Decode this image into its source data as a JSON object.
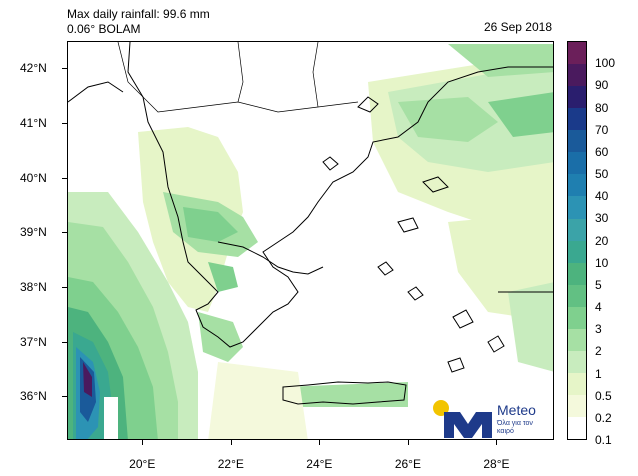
{
  "title": "Max daily rainfall: 99.6 mm",
  "model": "0.06° BOLAM",
  "date": "26 Sep 2018",
  "map": {
    "lat_labels": [
      "42°N",
      "41°N",
      "40°N",
      "39°N",
      "38°N",
      "37°N",
      "36°N"
    ],
    "lon_labels": [
      "20°E",
      "22°E",
      "24°E",
      "26°E",
      "28°E"
    ],
    "lat_values": [
      42,
      41,
      40,
      39,
      38,
      37,
      36
    ],
    "lon_values": [
      20,
      22,
      24,
      26,
      28
    ],
    "lat_range": [
      35.2,
      42.5
    ],
    "lon_range": [
      18.3,
      29.3
    ]
  },
  "colorbar": {
    "unit": "mm",
    "labels": [
      "100",
      "90",
      "80",
      "70",
      "60",
      "50",
      "40",
      "30",
      "20",
      "10",
      "5",
      "4",
      "3",
      "2",
      "1",
      "0.5",
      "0.2",
      "0.1"
    ],
    "colors": [
      "#6b1f5a",
      "#4a1a5e",
      "#2a1e6e",
      "#1a3a8a",
      "#1a5a9a",
      "#1a6ea8",
      "#1f7fb0",
      "#2c93b4",
      "#3ba3a8",
      "#3aa890",
      "#4db37e",
      "#62c083",
      "#7fd08e",
      "#a6e0a4",
      "#c8ecbe",
      "#e6f5c8",
      "#f4f9dc",
      "#ffffff"
    ]
  },
  "logo": {
    "brand": "Meteo",
    "tagline": "Όλα για τον καιρό",
    "colors": {
      "sun": "#f2c400",
      "mark": "#1e3a8a"
    }
  }
}
